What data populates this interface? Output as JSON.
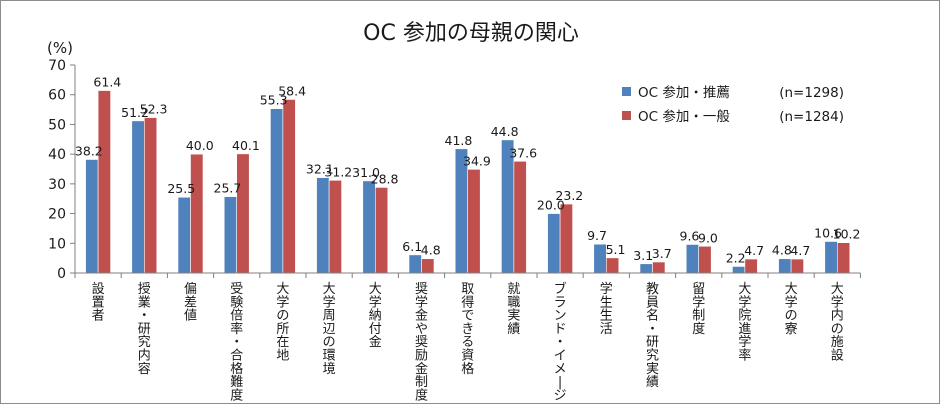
{
  "chart_data": {
    "type": "bar",
    "title": "OC 参加の母親の関心",
    "ylabel": "(%)",
    "ylim": [
      0,
      70
    ],
    "ytick_step": 10,
    "yticks": [
      "0",
      "10",
      "20",
      "30",
      "40",
      "50",
      "60",
      "70"
    ],
    "grid": false,
    "legend_position": "top-right",
    "categories": [
      "設置者",
      "授業・研究内容",
      "偏差値",
      "受験倍率・合格難度",
      "大学の所在地",
      "大学周辺の環境",
      "大学納付金",
      "奨学金や奨励金制度",
      "取得できる資格",
      "就職実績",
      "ブランド・イメージ",
      "学生生活",
      "教員名・研究実績",
      "留学制度",
      "大学院進学率",
      "大学の寮",
      "大学内の施設"
    ],
    "series": [
      {
        "name": "OC 参加・推薦",
        "legend_n": "(n=1298)",
        "color": "#4f81bd",
        "values": [
          38.2,
          51.2,
          25.5,
          25.7,
          55.3,
          32.1,
          31.0,
          6.1,
          41.8,
          44.8,
          20.0,
          9.7,
          3.1,
          9.6,
          2.2,
          4.8,
          10.6
        ],
        "labels": [
          "38.2",
          "51.2",
          "25.5",
          "25.7",
          "55.3",
          "32.1",
          "31.0",
          "6.1",
          "41.8",
          "44.8",
          "20.0",
          "9.7",
          "3.1",
          "9.6",
          "2.2",
          "4.8",
          "10.6"
        ]
      },
      {
        "name": "OC 参加・一般",
        "legend_n": "(n=1284)",
        "color": "#c0504d",
        "values": [
          61.4,
          52.3,
          40.0,
          40.1,
          58.4,
          31.2,
          28.8,
          4.8,
          34.9,
          37.6,
          23.2,
          5.1,
          3.7,
          9.0,
          4.7,
          4.7,
          10.2
        ],
        "labels": [
          "61.4",
          "52.3",
          "40.0",
          "40.1",
          "58.4",
          "31.2",
          "28.8",
          "4.8",
          "34.9",
          "37.6",
          "23.2",
          "5.1",
          "3.7",
          "9.0",
          "4.7",
          "4.7",
          "10.2"
        ]
      }
    ]
  }
}
